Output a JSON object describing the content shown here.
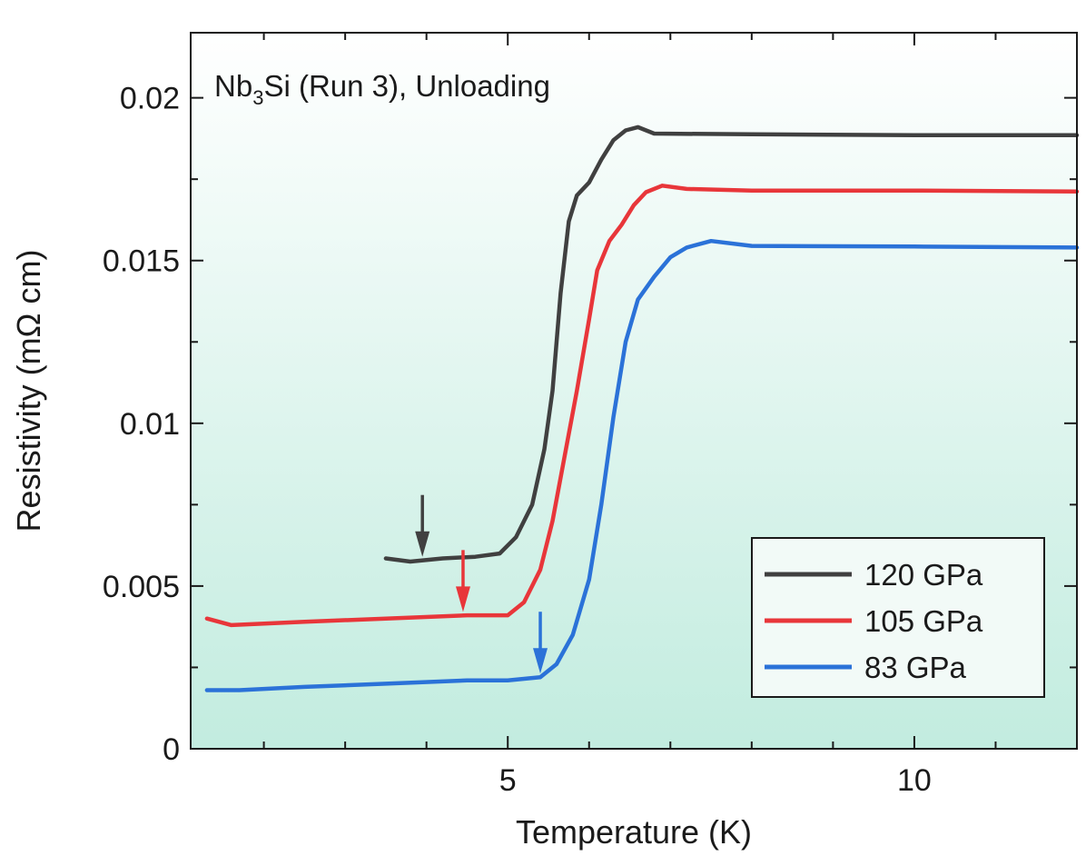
{
  "chart_data": {
    "type": "line",
    "xlabel": "Temperature (K)",
    "ylabel": "Resistivity (mΩ cm)",
    "xlim": [
      1.1,
      12.0
    ],
    "ylim": [
      0,
      0.022
    ],
    "xticks": [
      5,
      10
    ],
    "xtick_labels": [
      "5",
      "10"
    ],
    "yticks": [
      0,
      0.005,
      0.01,
      0.015,
      0.02
    ],
    "ytick_labels": [
      "0",
      "0.005",
      "0.01",
      "0.015",
      "0.02"
    ],
    "annotation": {
      "main": "Nb",
      "sub": "3",
      "rest": "Si (Run 3), Unloading"
    },
    "legend_position": "bottom-right",
    "grid": false,
    "background": "gradient white to mint",
    "series": [
      {
        "name": "120 GPa",
        "color": "#404040",
        "arrow_x": 3.95,
        "points": [
          [
            3.5,
            0.00585
          ],
          [
            3.8,
            0.00575
          ],
          [
            4.2,
            0.00585
          ],
          [
            4.6,
            0.0059
          ],
          [
            4.9,
            0.006
          ],
          [
            5.1,
            0.0065
          ],
          [
            5.3,
            0.0075
          ],
          [
            5.45,
            0.0092
          ],
          [
            5.55,
            0.011
          ],
          [
            5.65,
            0.014
          ],
          [
            5.75,
            0.0162
          ],
          [
            5.85,
            0.017
          ],
          [
            6.0,
            0.0174
          ],
          [
            6.15,
            0.0181
          ],
          [
            6.3,
            0.0187
          ],
          [
            6.45,
            0.019
          ],
          [
            6.6,
            0.0191
          ],
          [
            6.8,
            0.0189
          ],
          [
            8.0,
            0.01888
          ],
          [
            10.0,
            0.01885
          ],
          [
            12.0,
            0.01885
          ]
        ]
      },
      {
        "name": "105 GPa",
        "color": "#e8363a",
        "arrow_x": 4.45,
        "points": [
          [
            1.3,
            0.004
          ],
          [
            1.6,
            0.0038
          ],
          [
            2.5,
            0.0039
          ],
          [
            3.5,
            0.004
          ],
          [
            4.5,
            0.0041
          ],
          [
            5.0,
            0.0041
          ],
          [
            5.2,
            0.0045
          ],
          [
            5.4,
            0.0055
          ],
          [
            5.55,
            0.007
          ],
          [
            5.7,
            0.009
          ],
          [
            5.85,
            0.011
          ],
          [
            6.0,
            0.0132
          ],
          [
            6.1,
            0.0147
          ],
          [
            6.25,
            0.0156
          ],
          [
            6.4,
            0.0161
          ],
          [
            6.55,
            0.0167
          ],
          [
            6.7,
            0.0171
          ],
          [
            6.9,
            0.0173
          ],
          [
            7.2,
            0.0172
          ],
          [
            8.0,
            0.01715
          ],
          [
            10.0,
            0.01715
          ],
          [
            12.0,
            0.01712
          ]
        ]
      },
      {
        "name": "83 GPa",
        "color": "#2b72d8",
        "arrow_x": 5.4,
        "points": [
          [
            1.3,
            0.0018
          ],
          [
            1.7,
            0.0018
          ],
          [
            2.5,
            0.0019
          ],
          [
            3.5,
            0.002
          ],
          [
            4.5,
            0.0021
          ],
          [
            5.0,
            0.0021
          ],
          [
            5.4,
            0.0022
          ],
          [
            5.6,
            0.0026
          ],
          [
            5.8,
            0.0035
          ],
          [
            6.0,
            0.0052
          ],
          [
            6.15,
            0.0075
          ],
          [
            6.3,
            0.0102
          ],
          [
            6.45,
            0.0125
          ],
          [
            6.6,
            0.0138
          ],
          [
            6.8,
            0.0145
          ],
          [
            7.0,
            0.0151
          ],
          [
            7.2,
            0.0154
          ],
          [
            7.5,
            0.0156
          ],
          [
            8.0,
            0.01545
          ],
          [
            10.0,
            0.01543
          ],
          [
            12.0,
            0.0154
          ]
        ]
      }
    ]
  }
}
